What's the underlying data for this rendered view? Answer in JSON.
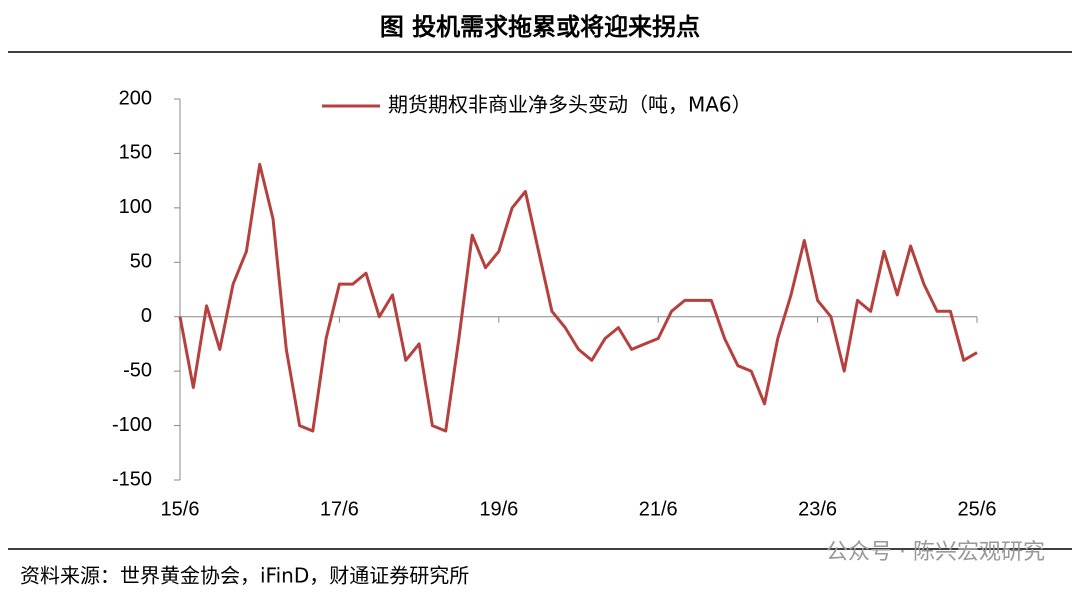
{
  "chart_data": {
    "type": "line",
    "title": "图  投机需求拖累或将迎来拐点",
    "source": "资料来源：世界黄金协会，iFinD，财通证券研究所",
    "watermark": "公众号 · 陈兴宏观研究",
    "categories": [
      "15/6",
      null,
      null,
      null,
      null,
      null,
      null,
      null,
      null,
      null,
      null,
      null,
      "17/6",
      null,
      null,
      null,
      null,
      null,
      null,
      null,
      null,
      null,
      null,
      null,
      "19/6",
      null,
      null,
      null,
      null,
      null,
      null,
      null,
      null,
      null,
      null,
      null,
      "21/6",
      null,
      null,
      null,
      null,
      null,
      null,
      null,
      null,
      null,
      null,
      null,
      "23/6",
      null,
      null,
      null,
      null,
      null,
      null,
      null,
      null,
      null,
      null,
      null,
      "25/6"
    ],
    "series": [
      {
        "name": "期货期权非商业净多头变动（吨，MA6）",
        "color": "#b5403e",
        "values": [
          0,
          -65,
          10,
          -30,
          30,
          60,
          140,
          90,
          -30,
          -100,
          -105,
          -20,
          30,
          30,
          40,
          0,
          20,
          -40,
          -25,
          -100,
          -105,
          -20,
          75,
          45,
          60,
          100,
          115,
          60,
          5,
          -10,
          -30,
          -40,
          -20,
          -10,
          -30,
          -25,
          -20,
          5,
          15,
          15,
          15,
          -20,
          -45,
          -50,
          -80,
          -20,
          20,
          70,
          15,
          0,
          -50,
          15,
          5,
          60,
          20,
          65,
          30,
          5,
          5,
          -40,
          -33
        ]
      }
    ],
    "ylim": [
      -150,
      200
    ],
    "yticks": [
      -150,
      -100,
      -50,
      0,
      50,
      100,
      150,
      200
    ],
    "legend": "top"
  }
}
